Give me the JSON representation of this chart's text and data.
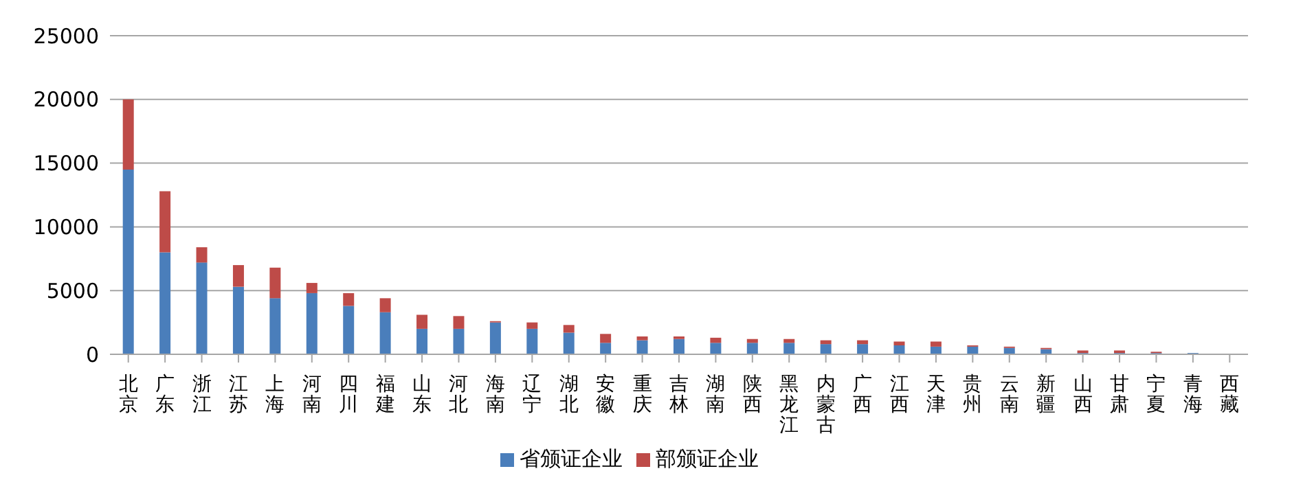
{
  "chart_data": {
    "type": "bar",
    "stacked": true,
    "categories": [
      "北京",
      "广东",
      "浙江",
      "江苏",
      "上海",
      "河南",
      "四川",
      "福建",
      "山东",
      "河北",
      "海南",
      "辽宁",
      "湖北",
      "安徽",
      "重庆",
      "吉林",
      "湖南",
      "陕西",
      "黑龙江",
      "内蒙古",
      "广西",
      "江西",
      "天津",
      "贵州",
      "云南",
      "新疆",
      "山西",
      "甘肃",
      "宁夏",
      "青海",
      "西藏"
    ],
    "series": [
      {
        "name": "省颁证企业",
        "color": "#4a7ebb",
        "values": [
          14500,
          8000,
          7200,
          5300,
          4400,
          4800,
          3800,
          3300,
          2000,
          2000,
          2500,
          2000,
          1700,
          900,
          1100,
          1200,
          900,
          900,
          900,
          800,
          800,
          700,
          600,
          600,
          500,
          400,
          100,
          100,
          100,
          100,
          0
        ]
      },
      {
        "name": "部颁证企业",
        "color": "#be4b48",
        "values": [
          5500,
          4800,
          1200,
          1700,
          2400,
          800,
          1000,
          1100,
          1100,
          1000,
          100,
          500,
          600,
          700,
          300,
          200,
          400,
          300,
          300,
          300,
          300,
          300,
          400,
          100,
          100,
          100,
          200,
          200,
          100,
          0,
          0
        ]
      }
    ],
    "ylim": [
      0,
      25000
    ],
    "yticks": [
      0,
      5000,
      10000,
      15000,
      20000,
      25000
    ],
    "grid": "y",
    "legend": "bottom"
  }
}
